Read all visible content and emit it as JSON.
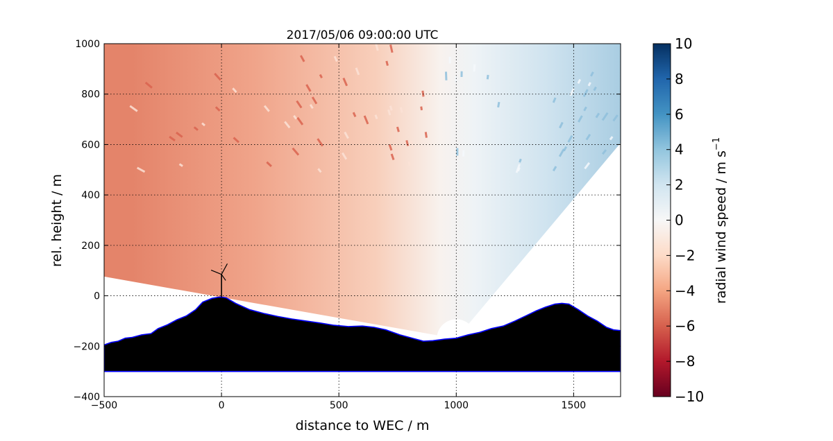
{
  "chart_data": {
    "type": "heatmap",
    "title": "2017/05/06 09:00:00 UTC",
    "xlabel": "distance to WEC / m",
    "ylabel": "rel. height / m",
    "xlim": [
      -500,
      1700
    ],
    "ylim": [
      -400,
      1000
    ],
    "xticks": [
      -500,
      0,
      500,
      1000,
      1500
    ],
    "yticks": [
      -400,
      -200,
      0,
      200,
      400,
      600,
      800,
      1000
    ],
    "grid": true,
    "colorbar": {
      "label": "radial wind speed / m s",
      "label_superscript": "−1",
      "range": [
        -10,
        10
      ],
      "ticks": [
        10,
        8,
        6,
        4,
        2,
        0,
        -2,
        -4,
        -6,
        -8,
        -10
      ],
      "colormap": "RdBu"
    },
    "scan_sector": {
      "origin_x": 1000,
      "origin_y": -170,
      "angle_range_deg": [
        50,
        170
      ],
      "field_description_free": null
    },
    "terrain_profile": {
      "x": [
        -500,
        -470,
        -440,
        -410,
        -380,
        -340,
        -300,
        -270,
        -230,
        -190,
        -150,
        -110,
        -80,
        -40,
        -10,
        0,
        20,
        60,
        120,
        180,
        240,
        300,
        360,
        420,
        480,
        540,
        600,
        650,
        700,
        760,
        820,
        860,
        900,
        950,
        1000,
        1050,
        1100,
        1150,
        1200,
        1250,
        1300,
        1340,
        1380,
        1420,
        1450,
        1480,
        1520,
        1560,
        1600,
        1640,
        1670,
        1700
      ],
      "y": [
        -195,
        -185,
        -180,
        -168,
        -165,
        -155,
        -150,
        -130,
        -115,
        -95,
        -80,
        -55,
        -25,
        -10,
        -5,
        -5,
        -8,
        -30,
        -55,
        -70,
        -82,
        -92,
        -100,
        -108,
        -117,
        -122,
        -120,
        -125,
        -135,
        -155,
        -170,
        -180,
        -178,
        -172,
        -168,
        -155,
        -145,
        -130,
        -120,
        -100,
        -78,
        -60,
        -45,
        -33,
        -30,
        -33,
        -55,
        -80,
        -100,
        -125,
        -135,
        -138
      ],
      "base": -300,
      "fill_color": "#000000",
      "edge_color": "#0000ff"
    },
    "turbine": {
      "x": 0,
      "hub_height": 85,
      "label": "WEC"
    }
  }
}
